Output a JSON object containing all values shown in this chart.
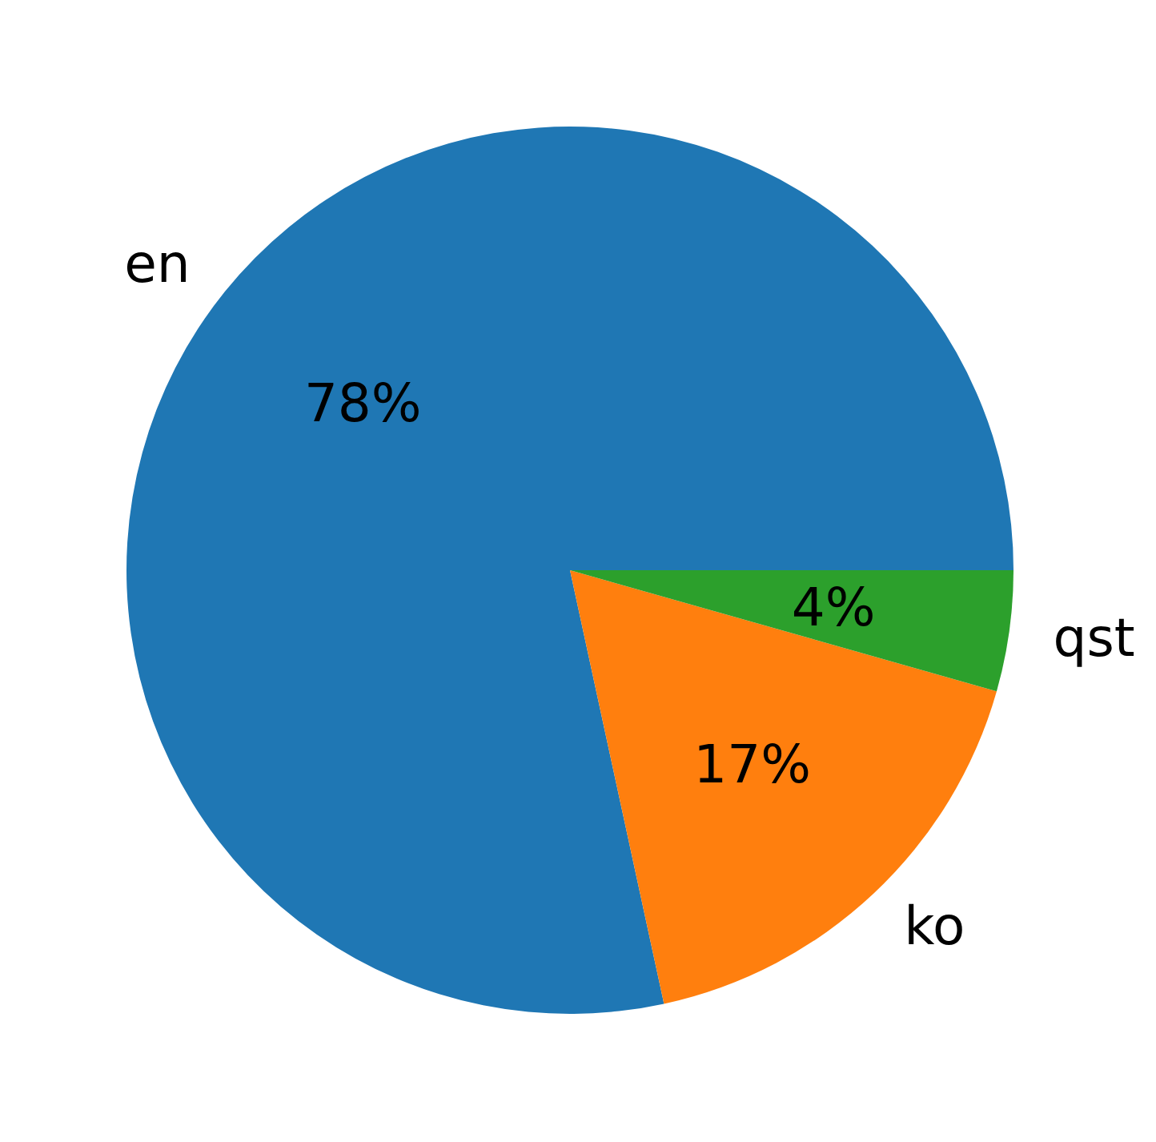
{
  "chart_data": {
    "type": "pie",
    "categories": [
      "en",
      "ko",
      "qst"
    ],
    "values": [
      78.4,
      17.2,
      4.4
    ],
    "value_labels": [
      "78%",
      "17%",
      "4%"
    ],
    "colors": [
      "#1f77b4",
      "#ff7f0e",
      "#2ca02c"
    ],
    "legend": false
  }
}
